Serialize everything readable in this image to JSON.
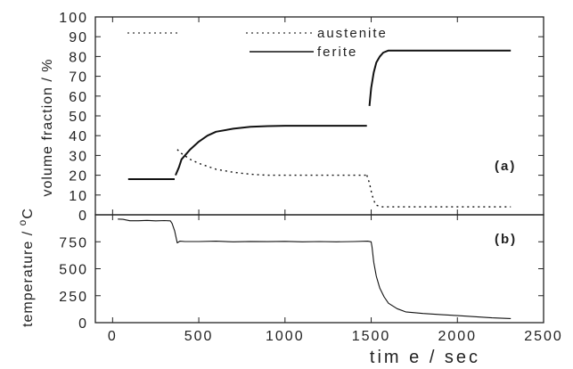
{
  "chart_data": [
    {
      "panel_label": "(a)",
      "type": "line",
      "xlabel": "",
      "ylabel": "volume fraction / %",
      "xlim": [
        -100,
        2500
      ],
      "ylim": [
        0,
        100
      ],
      "yticks": [
        0,
        10,
        20,
        30,
        40,
        50,
        60,
        70,
        80,
        90,
        100
      ],
      "legend": {
        "position": "top",
        "entries": [
          "",
          "austenite",
          "ferite"
        ]
      },
      "series": [
        {
          "name": "austenite",
          "style": "dotted",
          "segments": [
            [
              [
                375,
                33
              ],
              [
                400,
                31
              ],
              [
                450,
                28
              ],
              [
                500,
                26
              ],
              [
                550,
                24.5
              ],
              [
                600,
                23
              ],
              [
                700,
                21.5
              ],
              [
                800,
                20.5
              ],
              [
                900,
                20
              ],
              [
                1000,
                20
              ],
              [
                1200,
                20
              ],
              [
                1475,
                20
              ]
            ],
            [
              [
                1475,
                20
              ],
              [
                1490,
                16
              ],
              [
                1505,
                10
              ],
              [
                1525,
                5
              ],
              [
                1560,
                4
              ],
              [
                1700,
                4
              ],
              [
                2000,
                4
              ],
              [
                2310,
                4
              ]
            ]
          ]
        },
        {
          "name": "ferite",
          "style": "solid",
          "segments": [
            [
              [
                90,
                18
              ],
              [
                360,
                18
              ]
            ],
            [
              [
                365,
                20
              ],
              [
                385,
                24
              ],
              [
                400,
                28
              ],
              [
                450,
                33
              ],
              [
                500,
                37
              ],
              [
                550,
                40
              ],
              [
                600,
                42
              ],
              [
                700,
                43.5
              ],
              [
                800,
                44.5
              ],
              [
                900,
                44.8
              ],
              [
                1000,
                45
              ],
              [
                1200,
                45
              ],
              [
                1475,
                45
              ]
            ],
            [
              [
                1490,
                55
              ],
              [
                1500,
                64
              ],
              [
                1515,
                72
              ],
              [
                1530,
                77
              ],
              [
                1550,
                80
              ],
              [
                1570,
                82
              ],
              [
                1600,
                83
              ],
              [
                1800,
                83
              ],
              [
                2000,
                83
              ],
              [
                2310,
                83
              ]
            ]
          ]
        }
      ]
    },
    {
      "panel_label": "(b)",
      "type": "line",
      "xlabel": "tim e / sec",
      "ylabel": "temperature / °C",
      "ylabel_parts": {
        "before": "temperature / ",
        "sup": "o",
        "after": "C"
      },
      "xlim": [
        -100,
        2500
      ],
      "ylim": [
        0,
        1000
      ],
      "xticks": [
        0,
        500,
        1000,
        1500,
        2000,
        2500
      ],
      "yticks": [
        0,
        250,
        500,
        750
      ],
      "series": [
        {
          "name": "",
          "style": "solid",
          "points": [
            [
              30,
              960
            ],
            [
              60,
              958
            ],
            [
              100,
              945
            ],
            [
              150,
              945
            ],
            [
              200,
              948
            ],
            [
              250,
              944
            ],
            [
              300,
              946
            ],
            [
              335,
              944
            ],
            [
              345,
              920
            ],
            [
              360,
              850
            ],
            [
              375,
              740
            ],
            [
              390,
              755
            ],
            [
              420,
              752
            ],
            [
              500,
              752
            ],
            [
              600,
              755
            ],
            [
              700,
              750
            ],
            [
              800,
              753
            ],
            [
              900,
              751
            ],
            [
              1000,
              754
            ],
            [
              1100,
              750
            ],
            [
              1200,
              752
            ],
            [
              1300,
              750
            ],
            [
              1400,
              752
            ],
            [
              1480,
              755
            ],
            [
              1500,
              750
            ],
            [
              1505,
              700
            ],
            [
              1515,
              560
            ],
            [
              1530,
              430
            ],
            [
              1550,
              320
            ],
            [
              1575,
              240
            ],
            [
              1600,
              180
            ],
            [
              1650,
              130
            ],
            [
              1700,
              100
            ],
            [
              1800,
              85
            ],
            [
              1900,
              75
            ],
            [
              2000,
              65
            ],
            [
              2100,
              55
            ],
            [
              2200,
              45
            ],
            [
              2310,
              38
            ]
          ]
        }
      ]
    }
  ]
}
